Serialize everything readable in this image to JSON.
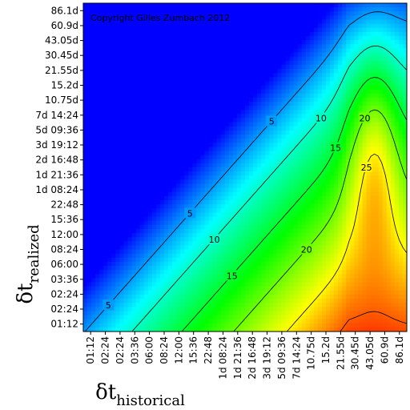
{
  "chart_data": {
    "type": "heatmap",
    "copyright": "Copyright Gilles Zumbach 2012",
    "xlabel": {
      "symbol": "δt",
      "subscript": "historical"
    },
    "ylabel": {
      "symbol": "δt",
      "subscript": "realized"
    },
    "x_tick_labels": [
      "01:12",
      "02:24",
      "02:24",
      "03:36",
      "06:00",
      "08:24",
      "12:00",
      "15:36",
      "22:48",
      "1d 08:24",
      "1d 21:36",
      "2d 16:48",
      "3d 19:12",
      "5d 09:36",
      "7d 14:24",
      "10.75d",
      "15.2d",
      "21.55d",
      "30.45d",
      "43.05d",
      "60.9d",
      "86.1d"
    ],
    "y_tick_labels": [
      "86.1d",
      "60.9d",
      "43.05d",
      "30.45d",
      "21.55d",
      "15.2d",
      "10.75d",
      "7d 14:24",
      "5d 09:36",
      "3d 19:12",
      "2d 16:48",
      "1d 21:36",
      "1d 08:24",
      "22:48",
      "15:36",
      "12:00",
      "08:24",
      "06:00",
      "03:36",
      "02:24",
      "02:24",
      "01:12"
    ],
    "contour_levels": [
      0,
      5,
      10,
      15,
      20,
      25,
      30
    ],
    "value_range": [
      0,
      33
    ],
    "colorscale": [
      "#0000ff",
      "#00ffff",
      "#00ff00",
      "#ffff00",
      "#ff0000"
    ]
  }
}
